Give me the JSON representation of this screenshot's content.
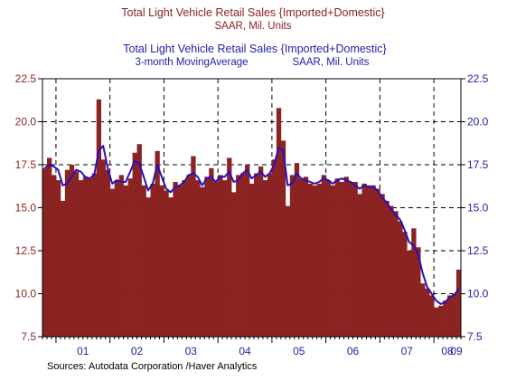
{
  "chart_data": {
    "type": "bar",
    "title_bar": "Total Light Vehicle Retail Sales {Imported+Domestic}",
    "subtitle_bar": "SAAR, Mil. Units",
    "title_line": "Total Light Vehicle Retail Sales {Imported+Domestic}",
    "subtitle_line_left": "3-month MovingAverage",
    "subtitle_line_right": "SAAR, Mil. Units",
    "source": "Sources:  Autodata Corporation /Haver Analytics",
    "ylim": [
      7.5,
      22.5
    ],
    "yticks": [
      "7.5",
      "10.0",
      "12.5",
      "15.0",
      "17.5",
      "20.0",
      "22.5"
    ],
    "xticks": [
      "01",
      "02",
      "03",
      "04",
      "05",
      "06",
      "07",
      "08",
      "09"
    ],
    "grid": true,
    "colors": {
      "bars": "#8b2323",
      "line": "#2a10b8",
      "title_bar": "#8b2323",
      "title_line": "#1f1fa8"
    },
    "series": [
      {
        "kind": "bar",
        "values": [
          17.3,
          17.9,
          16.9,
          16.6,
          15.4,
          17.2,
          17.5,
          17.1,
          16.6,
          16.8,
          16.7,
          17.0,
          21.3,
          17.8,
          17.2,
          16.1,
          16.6,
          16.9,
          16.3,
          16.7,
          18.2,
          18.7,
          16.3,
          15.6,
          16.4,
          18.3,
          16.3,
          16.0,
          15.6,
          16.5,
          16.3,
          16.6,
          16.9,
          18.0,
          16.6,
          16.2,
          16.8,
          17.3,
          16.5,
          16.9,
          16.6,
          17.9,
          15.9,
          16.9,
          17.0,
          17.5,
          16.4,
          17.0,
          17.4,
          16.6,
          17.0,
          17.8,
          20.8,
          18.9,
          15.1,
          16.9,
          17.6,
          16.7,
          16.8,
          16.4,
          16.3,
          16.4,
          16.9,
          16.6,
          16.3,
          16.7,
          16.5,
          16.8,
          16.5,
          16.5,
          15.8,
          16.4,
          16.3,
          16.3,
          16.1,
          15.8,
          15.4,
          15.1,
          14.8,
          14.2,
          13.6,
          12.5,
          13.8,
          12.7,
          10.6,
          10.3,
          9.9,
          9.2,
          9.3,
          9.6,
          9.9,
          10.0,
          11.4
        ]
      },
      {
        "kind": "line",
        "values": [
          17.3,
          17.5,
          17.4,
          17.2,
          16.3,
          16.4,
          16.8,
          17.2,
          17.1,
          16.8,
          16.7,
          16.9,
          18.3,
          18.6,
          17.3,
          16.4,
          16.6,
          16.5,
          16.5,
          17.1,
          17.7,
          17.6,
          16.8,
          16.0,
          16.4,
          17.5,
          16.8,
          16.1,
          15.9,
          16.2,
          16.3,
          16.5,
          16.9,
          17.0,
          16.8,
          16.3,
          16.7,
          16.8,
          16.5,
          16.8,
          16.8,
          17.1,
          16.5,
          16.6,
          17.0,
          17.2,
          16.7,
          16.9,
          17.1,
          16.8,
          17.0,
          17.5,
          18.5,
          18.3,
          16.3,
          16.4,
          17.0,
          16.7,
          16.6,
          16.5,
          16.4,
          16.5,
          16.7,
          16.6,
          16.4,
          16.6,
          16.7,
          16.6,
          16.5,
          16.3,
          16.1,
          16.3,
          16.2,
          16.2,
          16.0,
          15.6,
          15.3,
          14.9,
          14.6,
          14.3,
          13.7,
          13.0,
          12.8,
          12.3,
          11.2,
          10.4,
          10.0,
          9.6,
          9.4,
          9.5,
          9.8,
          9.9,
          10.3
        ]
      }
    ]
  }
}
